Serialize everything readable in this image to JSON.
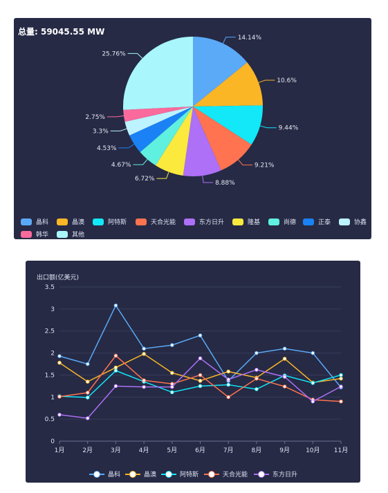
{
  "pie": {
    "total_label": "总量: 59045.55 MW",
    "chart_data": {
      "type": "pie",
      "labels": [
        "晶科",
        "晶澳",
        "阿特斯",
        "天合光能",
        "东方日升",
        "隆基",
        "尚德",
        "正泰",
        "协鑫",
        "韩华",
        "其他"
      ],
      "values": [
        14.14,
        10.6,
        9.44,
        9.21,
        8.88,
        6.72,
        4.67,
        4.53,
        3.3,
        2.75,
        25.76
      ],
      "value_labels": [
        "14.14%",
        "10.6%",
        "9.44%",
        "9.21%",
        "8.88%",
        "6.72%",
        "4.67%",
        "4.53%",
        "3.3%",
        "2.75%",
        "25.76%"
      ],
      "colors": [
        "#5aaaf8",
        "#fbb625",
        "#12e8f8",
        "#ff7350",
        "#ae70f7",
        "#fbe93d",
        "#5ff0df",
        "#1b82f5",
        "#bdf2ff",
        "#fa6a9c",
        "#a9f6fd"
      ],
      "legend_position": "bottom"
    }
  },
  "line": {
    "ylabel": "出口额(亿美元)",
    "chart_data": {
      "type": "line",
      "x": [
        "1月",
        "2月",
        "3月",
        "4月",
        "5月",
        "6月",
        "7月",
        "8月",
        "9月",
        "10月",
        "11月"
      ],
      "ylim": [
        0,
        3.5
      ],
      "yticks": [
        "0",
        "0.5",
        "1",
        "1.5",
        "2",
        "2.5",
        "3",
        "3.5"
      ],
      "series": [
        {
          "name": "晶科",
          "color": "#5aaaf8",
          "values": [
            1.93,
            1.75,
            3.08,
            2.1,
            2.18,
            2.4,
            1.37,
            2.0,
            2.1,
            2.0,
            1.22
          ]
        },
        {
          "name": "晶澳",
          "color": "#fbb625",
          "values": [
            1.78,
            1.35,
            1.67,
            1.98,
            1.55,
            1.37,
            1.58,
            1.44,
            1.87,
            1.33,
            1.42
          ]
        },
        {
          "name": "阿特斯",
          "color": "#12e8f8",
          "values": [
            1.02,
            0.99,
            1.6,
            1.35,
            1.11,
            1.25,
            1.28,
            1.18,
            1.49,
            1.32,
            1.5
          ]
        },
        {
          "name": "天合光能",
          "color": "#ff7350",
          "values": [
            1.01,
            1.1,
            1.94,
            1.38,
            1.3,
            1.5,
            1.0,
            1.42,
            1.24,
            0.94,
            0.9
          ]
        },
        {
          "name": "东方日升",
          "color": "#ae70f7",
          "values": [
            0.6,
            0.52,
            1.25,
            1.23,
            1.23,
            1.88,
            1.4,
            1.62,
            1.46,
            0.9,
            1.24
          ]
        }
      ],
      "legend_position": "bottom",
      "grid": true
    }
  }
}
